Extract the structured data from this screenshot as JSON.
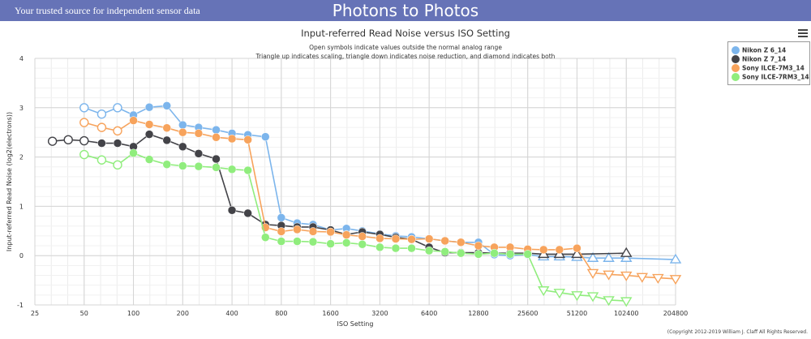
{
  "header": {
    "tagline": "Your trusted source for independent sensor data",
    "site_title": "Photons to Photos"
  },
  "menu": {
    "icon": "hamburger-menu-icon"
  },
  "footer": {
    "copyright": "(Copyright 2012-2019 William J. Claff All Rights Reserved."
  },
  "chart_data": {
    "type": "line",
    "title": "Input-referred Read Noise versus ISO Setting",
    "subtitle_lines": [
      "Open symbols indicate values outside the normal analog range",
      "Triangle up indicates scaling, triangle down indicates noise reduction, and diamond indicates both"
    ],
    "xlabel": "ISO Setting",
    "ylabel": "Input-referred Read Noise (log2(electrons))",
    "x_scale": "log2",
    "xlim": [
      25,
      204800
    ],
    "ylim": [
      -1,
      4
    ],
    "x_ticks": [
      "25",
      "50",
      "100",
      "200",
      "400",
      "800",
      "1600",
      "3200",
      "6400",
      "12800",
      "25600",
      "51200",
      "102400",
      "204800"
    ],
    "y_ticks": [
      -1,
      0,
      1,
      2,
      3,
      4
    ],
    "series": [
      {
        "name": "Nikon Z 6_14",
        "color": "#7cb5ec",
        "points": [
          {
            "x": 50,
            "y": 3.0,
            "m": "oc"
          },
          {
            "x": 64,
            "y": 2.87,
            "m": "oc"
          },
          {
            "x": 80,
            "y": 3.0,
            "m": "oc"
          },
          {
            "x": 100,
            "y": 2.85,
            "m": "c"
          },
          {
            "x": 125,
            "y": 3.01,
            "m": "c"
          },
          {
            "x": 160,
            "y": 3.04,
            "m": "c"
          },
          {
            "x": 200,
            "y": 2.65,
            "m": "c"
          },
          {
            "x": 250,
            "y": 2.6,
            "m": "c"
          },
          {
            "x": 320,
            "y": 2.55,
            "m": "c"
          },
          {
            "x": 400,
            "y": 2.48,
            "m": "c"
          },
          {
            "x": 500,
            "y": 2.45,
            "m": "c"
          },
          {
            "x": 640,
            "y": 2.41,
            "m": "c"
          },
          {
            "x": 800,
            "y": 0.77,
            "m": "c"
          },
          {
            "x": 1000,
            "y": 0.66,
            "m": "c"
          },
          {
            "x": 1250,
            "y": 0.63,
            "m": "c"
          },
          {
            "x": 1600,
            "y": 0.52,
            "m": "c"
          },
          {
            "x": 2000,
            "y": 0.55,
            "m": "c"
          },
          {
            "x": 2500,
            "y": 0.5,
            "m": "c"
          },
          {
            "x": 3200,
            "y": 0.44,
            "m": "c"
          },
          {
            "x": 4000,
            "y": 0.4,
            "m": "c"
          },
          {
            "x": 5000,
            "y": 0.38,
            "m": "c"
          },
          {
            "x": 6400,
            "y": 0.34,
            "m": "c"
          },
          {
            "x": 8000,
            "y": 0.3,
            "m": "c"
          },
          {
            "x": 10000,
            "y": 0.27,
            "m": "c"
          },
          {
            "x": 12800,
            "y": 0.27,
            "m": "c"
          },
          {
            "x": 16000,
            "y": 0.02,
            "m": "c"
          },
          {
            "x": 20000,
            "y": 0.0,
            "m": "c"
          },
          {
            "x": 25600,
            "y": 0.02,
            "m": "c"
          },
          {
            "x": 32000,
            "y": -0.02,
            "m": "tu"
          },
          {
            "x": 40000,
            "y": -0.02,
            "m": "tu"
          },
          {
            "x": 51200,
            "y": -0.03,
            "m": "tu"
          },
          {
            "x": 64000,
            "y": -0.05,
            "m": "tu"
          },
          {
            "x": 80000,
            "y": -0.05,
            "m": "tu"
          },
          {
            "x": 102400,
            "y": -0.05,
            "m": "tu"
          },
          {
            "x": 204800,
            "y": -0.08,
            "m": "tu"
          }
        ]
      },
      {
        "name": "Nikon Z 7_14",
        "color": "#434348",
        "points": [
          {
            "x": 32,
            "y": 2.32,
            "m": "oc"
          },
          {
            "x": 40,
            "y": 2.35,
            "m": "oc"
          },
          {
            "x": 50,
            "y": 2.33,
            "m": "oc"
          },
          {
            "x": 64,
            "y": 2.28,
            "m": "c"
          },
          {
            "x": 80,
            "y": 2.28,
            "m": "c"
          },
          {
            "x": 100,
            "y": 2.21,
            "m": "c"
          },
          {
            "x": 125,
            "y": 2.46,
            "m": "c"
          },
          {
            "x": 160,
            "y": 2.34,
            "m": "c"
          },
          {
            "x": 200,
            "y": 2.21,
            "m": "c"
          },
          {
            "x": 250,
            "y": 2.07,
            "m": "c"
          },
          {
            "x": 320,
            "y": 1.96,
            "m": "c"
          },
          {
            "x": 400,
            "y": 0.92,
            "m": "c"
          },
          {
            "x": 500,
            "y": 0.86,
            "m": "c"
          },
          {
            "x": 640,
            "y": 0.63,
            "m": "c"
          },
          {
            "x": 800,
            "y": 0.61,
            "m": "c"
          },
          {
            "x": 1000,
            "y": 0.58,
            "m": "c"
          },
          {
            "x": 1250,
            "y": 0.58,
            "m": "c"
          },
          {
            "x": 1600,
            "y": 0.52,
            "m": "c"
          },
          {
            "x": 2000,
            "y": 0.43,
            "m": "c"
          },
          {
            "x": 2500,
            "y": 0.48,
            "m": "c"
          },
          {
            "x": 3200,
            "y": 0.43,
            "m": "c"
          },
          {
            "x": 4000,
            "y": 0.37,
            "m": "c"
          },
          {
            "x": 5000,
            "y": 0.33,
            "m": "c"
          },
          {
            "x": 6400,
            "y": 0.17,
            "m": "c"
          },
          {
            "x": 8000,
            "y": 0.06,
            "m": "c"
          },
          {
            "x": 10000,
            "y": 0.06,
            "m": "c"
          },
          {
            "x": 12800,
            "y": 0.06,
            "m": "c"
          },
          {
            "x": 16000,
            "y": 0.05,
            "m": "c"
          },
          {
            "x": 20000,
            "y": 0.05,
            "m": "c"
          },
          {
            "x": 25600,
            "y": 0.05,
            "m": "c"
          },
          {
            "x": 32000,
            "y": 0.03,
            "m": "tu"
          },
          {
            "x": 40000,
            "y": 0.03,
            "m": "tu"
          },
          {
            "x": 51200,
            "y": 0.03,
            "m": "tu"
          },
          {
            "x": 102400,
            "y": 0.05,
            "m": "tu"
          }
        ]
      },
      {
        "name": "Sony ILCE-7M3_14",
        "color": "#f7a35c",
        "points": [
          {
            "x": 50,
            "y": 2.7,
            "m": "oc"
          },
          {
            "x": 64,
            "y": 2.6,
            "m": "oc"
          },
          {
            "x": 80,
            "y": 2.53,
            "m": "oc"
          },
          {
            "x": 100,
            "y": 2.74,
            "m": "c"
          },
          {
            "x": 125,
            "y": 2.66,
            "m": "c"
          },
          {
            "x": 160,
            "y": 2.59,
            "m": "c"
          },
          {
            "x": 200,
            "y": 2.5,
            "m": "c"
          },
          {
            "x": 250,
            "y": 2.48,
            "m": "c"
          },
          {
            "x": 320,
            "y": 2.4,
            "m": "c"
          },
          {
            "x": 400,
            "y": 2.37,
            "m": "c"
          },
          {
            "x": 500,
            "y": 2.35,
            "m": "c"
          },
          {
            "x": 640,
            "y": 0.57,
            "m": "c"
          },
          {
            "x": 800,
            "y": 0.49,
            "m": "c"
          },
          {
            "x": 1000,
            "y": 0.53,
            "m": "c"
          },
          {
            "x": 1250,
            "y": 0.49,
            "m": "c"
          },
          {
            "x": 1600,
            "y": 0.48,
            "m": "c"
          },
          {
            "x": 2000,
            "y": 0.42,
            "m": "c"
          },
          {
            "x": 2500,
            "y": 0.39,
            "m": "c"
          },
          {
            "x": 3200,
            "y": 0.35,
            "m": "c"
          },
          {
            "x": 4000,
            "y": 0.34,
            "m": "c"
          },
          {
            "x": 5000,
            "y": 0.33,
            "m": "c"
          },
          {
            "x": 6400,
            "y": 0.34,
            "m": "c"
          },
          {
            "x": 8000,
            "y": 0.3,
            "m": "c"
          },
          {
            "x": 10000,
            "y": 0.27,
            "m": "c"
          },
          {
            "x": 12800,
            "y": 0.2,
            "m": "c"
          },
          {
            "x": 16000,
            "y": 0.17,
            "m": "c"
          },
          {
            "x": 20000,
            "y": 0.17,
            "m": "c"
          },
          {
            "x": 25600,
            "y": 0.13,
            "m": "c"
          },
          {
            "x": 32000,
            "y": 0.12,
            "m": "c"
          },
          {
            "x": 40000,
            "y": 0.12,
            "m": "c"
          },
          {
            "x": 51200,
            "y": 0.15,
            "m": "c"
          },
          {
            "x": 64000,
            "y": -0.35,
            "m": "td"
          },
          {
            "x": 80000,
            "y": -0.38,
            "m": "td"
          },
          {
            "x": 102400,
            "y": -0.4,
            "m": "td"
          },
          {
            "x": 128000,
            "y": -0.43,
            "m": "td"
          },
          {
            "x": 160000,
            "y": -0.45,
            "m": "td"
          },
          {
            "x": 204800,
            "y": -0.47,
            "m": "td"
          }
        ]
      },
      {
        "name": "Sony ILCE-7RM3_14",
        "color": "#90ed7d",
        "points": [
          {
            "x": 50,
            "y": 2.05,
            "m": "oc"
          },
          {
            "x": 64,
            "y": 1.94,
            "m": "oc"
          },
          {
            "x": 80,
            "y": 1.84,
            "m": "oc"
          },
          {
            "x": 100,
            "y": 2.08,
            "m": "c"
          },
          {
            "x": 125,
            "y": 1.95,
            "m": "c"
          },
          {
            "x": 160,
            "y": 1.85,
            "m": "c"
          },
          {
            "x": 200,
            "y": 1.82,
            "m": "c"
          },
          {
            "x": 250,
            "y": 1.81,
            "m": "c"
          },
          {
            "x": 320,
            "y": 1.79,
            "m": "c"
          },
          {
            "x": 400,
            "y": 1.75,
            "m": "c"
          },
          {
            "x": 500,
            "y": 1.73,
            "m": "c"
          },
          {
            "x": 640,
            "y": 0.37,
            "m": "c"
          },
          {
            "x": 800,
            "y": 0.29,
            "m": "c"
          },
          {
            "x": 1000,
            "y": 0.29,
            "m": "c"
          },
          {
            "x": 1250,
            "y": 0.28,
            "m": "c"
          },
          {
            "x": 1600,
            "y": 0.24,
            "m": "c"
          },
          {
            "x": 2000,
            "y": 0.26,
            "m": "c"
          },
          {
            "x": 2500,
            "y": 0.23,
            "m": "c"
          },
          {
            "x": 3200,
            "y": 0.17,
            "m": "c"
          },
          {
            "x": 4000,
            "y": 0.15,
            "m": "c"
          },
          {
            "x": 5000,
            "y": 0.15,
            "m": "c"
          },
          {
            "x": 6400,
            "y": 0.1,
            "m": "c"
          },
          {
            "x": 8000,
            "y": 0.08,
            "m": "c"
          },
          {
            "x": 10000,
            "y": 0.05,
            "m": "c"
          },
          {
            "x": 12800,
            "y": 0.03,
            "m": "c"
          },
          {
            "x": 16000,
            "y": 0.05,
            "m": "c"
          },
          {
            "x": 20000,
            "y": 0.03,
            "m": "c"
          },
          {
            "x": 25600,
            "y": 0.03,
            "m": "c"
          },
          {
            "x": 32000,
            "y": -0.7,
            "m": "td"
          },
          {
            "x": 40000,
            "y": -0.75,
            "m": "td"
          },
          {
            "x": 51200,
            "y": -0.8,
            "m": "td"
          },
          {
            "x": 64000,
            "y": -0.82,
            "m": "td"
          },
          {
            "x": 80000,
            "y": -0.9,
            "m": "td"
          },
          {
            "x": 102400,
            "y": -0.92,
            "m": "td"
          }
        ]
      }
    ]
  }
}
